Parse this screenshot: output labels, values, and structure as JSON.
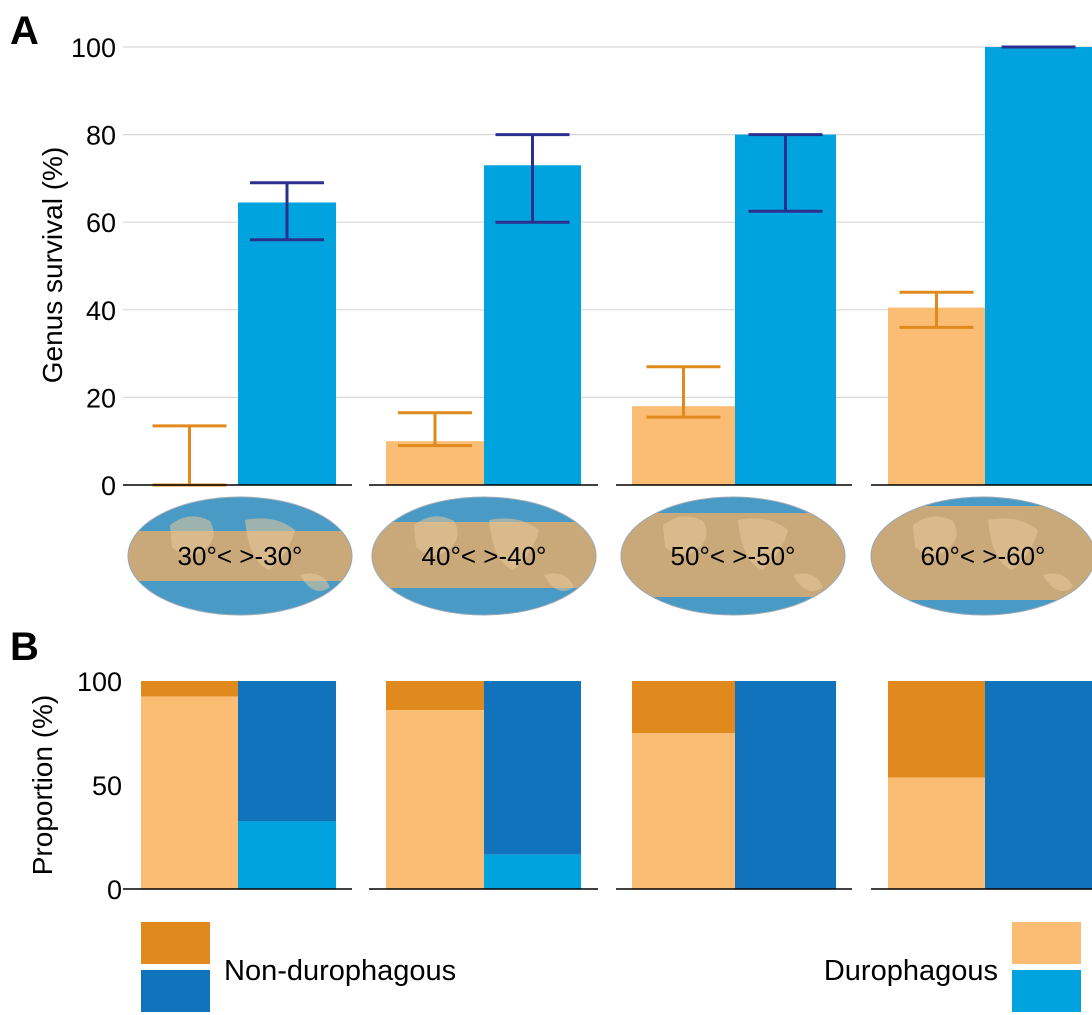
{
  "colors": {
    "durophagous_survival": "#fbbd74",
    "nondurophagous_survival": "#00a3dd",
    "durophagous_err": "#e08a1e",
    "nondurophagous_err": "#2b2f8e",
    "nondurophagous_prop_orange": "#e08a1e",
    "nondurophagous_prop_blue": "#1173bb",
    "map_land": "#c9a97a",
    "map_ocean": "#4a9ac6"
  },
  "chart_data": [
    {
      "type": "bar",
      "panel": "A",
      "ylabel": "Genus survival (%)",
      "ylim": [
        0,
        100
      ],
      "yticks": [
        0,
        20,
        40,
        60,
        80,
        100
      ],
      "grid": true,
      "categories": [
        "30°< >-30°",
        "40°< >-40°",
        "50°< >-50°",
        "60°< >-60°"
      ],
      "series": [
        {
          "values": [
            0,
            10,
            18,
            40.5
          ],
          "err_low": [
            0,
            9,
            15.5,
            36
          ],
          "err_high": [
            13.5,
            16.5,
            27,
            44
          ]
        },
        {
          "values": [
            64.5,
            73,
            80,
            100
          ],
          "err_low": [
            56,
            60,
            62.5,
            100
          ],
          "err_high": [
            69,
            80,
            80,
            100
          ]
        }
      ]
    },
    {
      "type": "bar",
      "panel": "B",
      "stacked": true,
      "ylabel": "Proportion (%)",
      "ylim": [
        0,
        100
      ],
      "yticks": [
        0,
        50,
        100
      ],
      "categories": [
        "30°< >-30°",
        "40°< >-40°",
        "50°< >-50°",
        "60°< >-60°"
      ],
      "series": [
        {
          "group": "left",
          "bottom": [
            92.5,
            86,
            75,
            53.5
          ],
          "top_remainder": [
            7.5,
            14,
            25,
            46.5
          ]
        },
        {
          "group": "right",
          "bottom": [
            32.5,
            16.5,
            0,
            0
          ],
          "top_remainder": [
            67.5,
            83.5,
            100,
            100
          ]
        }
      ],
      "legend": [
        {
          "label": "Non-durophagous",
          "placement": "bottom-left"
        },
        {
          "label": "Durophagous",
          "placement": "bottom-right"
        }
      ]
    }
  ],
  "panels": {
    "a": "A",
    "b": "B"
  }
}
